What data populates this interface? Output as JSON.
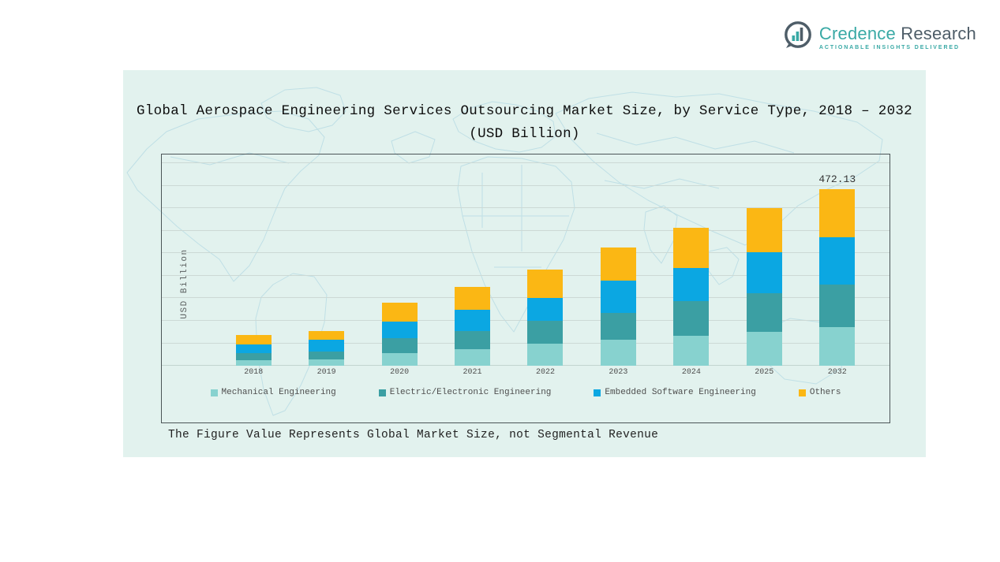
{
  "logo": {
    "brand_primary": "Credence",
    "brand_secondary": "Research",
    "tagline": "ACTIONABLE INSIGHTS DELIVERED",
    "colors": {
      "teal": "#39a9a5",
      "slate": "#4e5d68"
    }
  },
  "title": "Global Aerospace Engineering Services Outsourcing Market Size, by Service Type, 2018 – 2032 (USD Billion)",
  "footnote": "The Figure Value Represents Global Market Size, not Segmental Revenue",
  "chart_data": {
    "type": "bar",
    "stacked": true,
    "title": "Global Aerospace Engineering Services Outsourcing Market Size, by Service Type, 2018 – 2032 (USD Billion)",
    "xlabel": "",
    "ylabel": "USD Billion",
    "categories": [
      "2018",
      "2019",
      "2020",
      "2021",
      "2022",
      "2023",
      "2024",
      "2025",
      "2032"
    ],
    "series": [
      {
        "name": "Mechanical Engineering",
        "color": "#87d2cf",
        "values": [
          15.0,
          17.5,
          33.5,
          44.0,
          58.0,
          69.0,
          81.0,
          90.0,
          104.0
        ]
      },
      {
        "name": "Electric/Electronic Engineering",
        "color": "#3b9fa3",
        "values": [
          18.0,
          21.0,
          41.0,
          49.0,
          61.0,
          71.5,
          91.0,
          103.0,
          113.5
        ]
      },
      {
        "name": "Embedded Software Engineering",
        "color": "#0ba7e2",
        "values": [
          24.0,
          30.0,
          43.5,
          56.0,
          62.0,
          86.5,
          90.0,
          111.0,
          126.3
        ]
      },
      {
        "name": "Others",
        "color": "#fbb714",
        "values": [
          24.5,
          25.0,
          50.0,
          62.0,
          75.0,
          88.0,
          107.0,
          118.0,
          128.33
        ]
      }
    ],
    "annotations": [
      {
        "category": "2032",
        "label": "472.13"
      }
    ],
    "ylim": [
      0,
      564
    ],
    "gridline_step": 60,
    "grid": true,
    "legend_position": "bottom",
    "background": "#e2f2ee",
    "map_line_color": "#b4d9e3"
  }
}
